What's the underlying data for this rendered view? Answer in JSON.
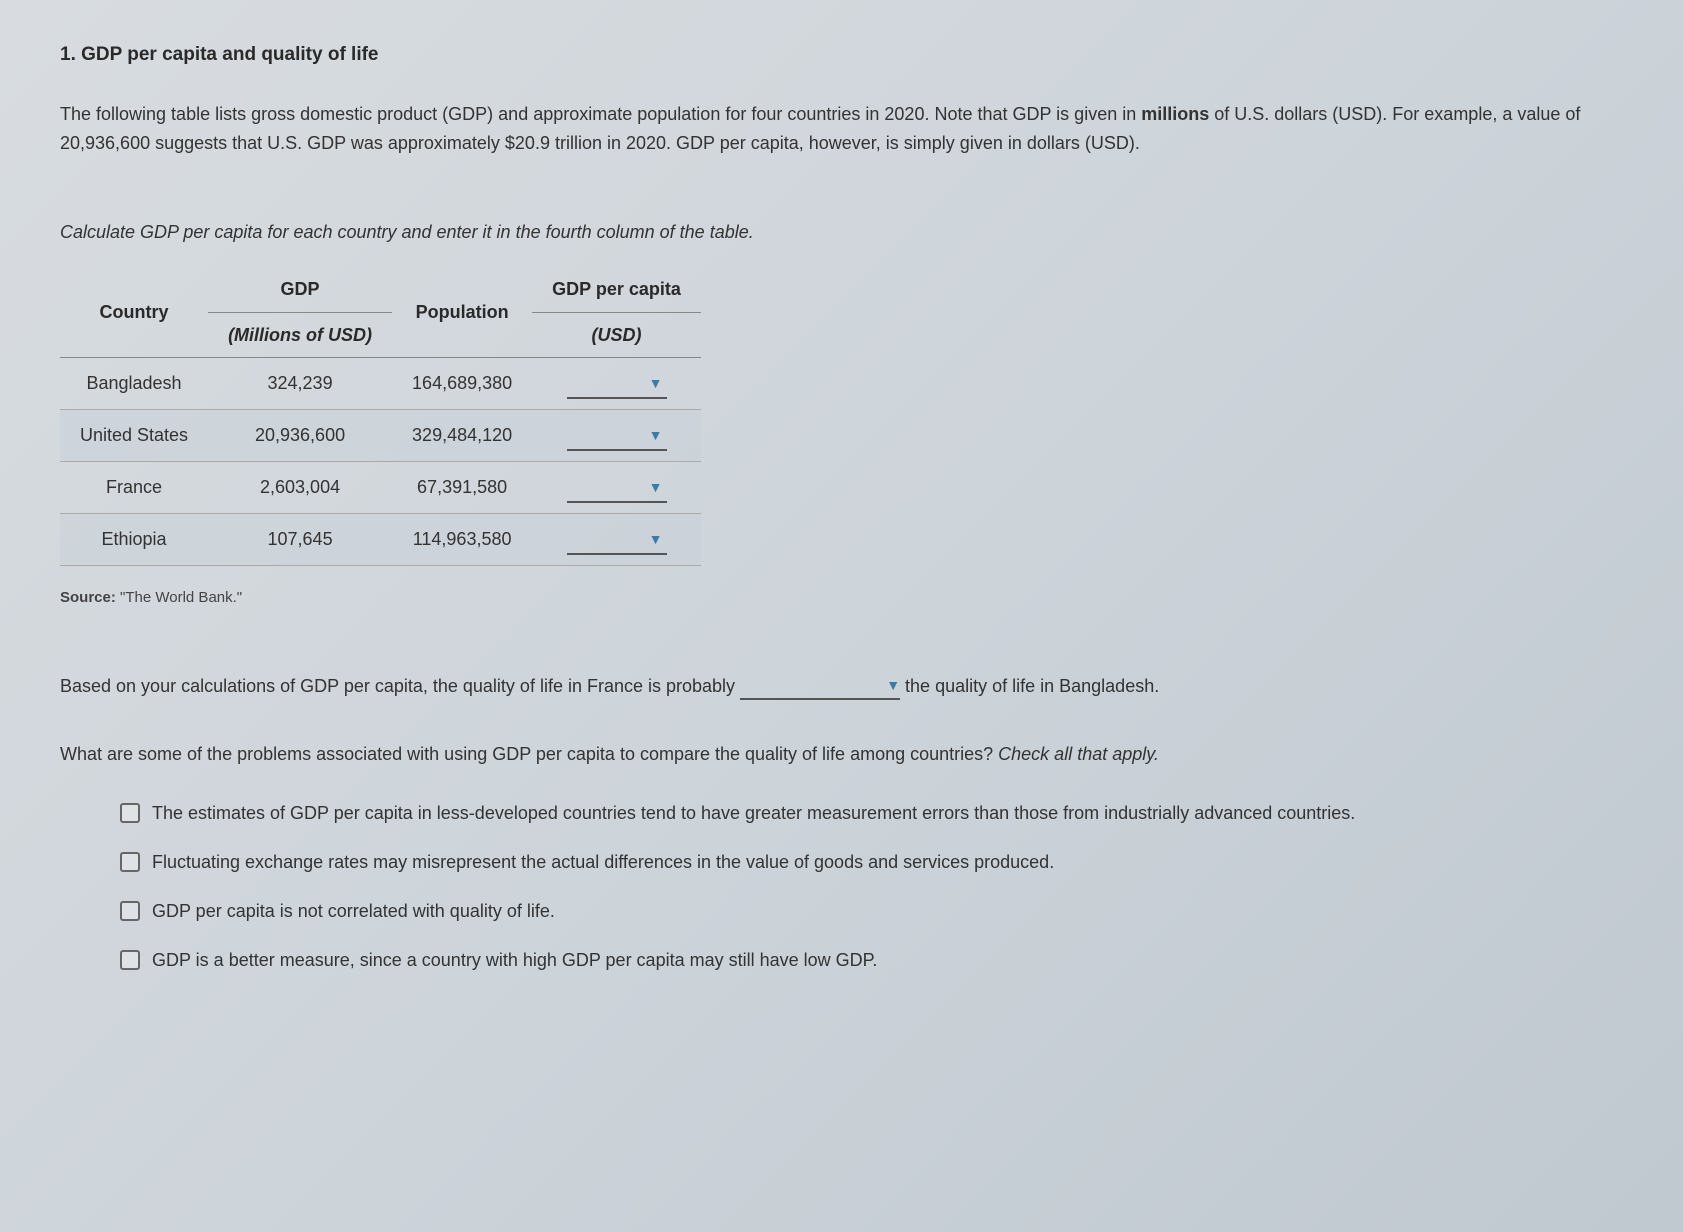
{
  "title": "1. GDP per capita and quality of life",
  "intro": {
    "part1": "The following table lists gross domestic product (GDP) and approximate population for four countries in 2020. Note that GDP is given in ",
    "bold": "millions",
    "part2": " of U.S. dollars (USD). For example, a value of 20,936,600 suggests that U.S. GDP was approximately $20.9 trillion in 2020. GDP per capita, however, is simply given in dollars (USD)."
  },
  "instruction": "Calculate GDP per capita for each country and enter it in the fourth column of the table.",
  "table": {
    "headers": {
      "country": "Country",
      "gdp_top": "GDP",
      "gdp_sub": "(Millions of USD)",
      "population": "Population",
      "percapita_top": "GDP per capita",
      "percapita_sub": "(USD)"
    },
    "rows": [
      {
        "country": "Bangladesh",
        "gdp": "324,239",
        "population": "164,689,380"
      },
      {
        "country": "United States",
        "gdp": "20,936,600",
        "population": "329,484,120"
      },
      {
        "country": "France",
        "gdp": "2,603,004",
        "population": "67,391,580"
      },
      {
        "country": "Ethiopia",
        "gdp": "107,645",
        "population": "114,963,580"
      }
    ]
  },
  "source": {
    "label": "Source:",
    "text": " \"The World Bank.\""
  },
  "comparison": {
    "part1": "Based on your calculations of GDP per capita, the quality of life in France is probably ",
    "part2": " the quality of life in Bangladesh."
  },
  "followup": {
    "text": "What are some of the problems associated with using GDP per capita to compare the quality of life among countries? ",
    "italic": "Check all that apply."
  },
  "checkboxes": [
    "The estimates of GDP per capita in less-developed countries tend to have greater measurement errors than those from industrially advanced countries.",
    "Fluctuating exchange rates may misrepresent the actual differences in the value of goods and services produced.",
    "GDP per capita is not correlated with quality of life.",
    "GDP is a better measure, since a country with high GDP per capita may still have low GDP."
  ],
  "colors": {
    "arrow": "#3a7ca5",
    "text": "#333333",
    "border": "#888888"
  }
}
